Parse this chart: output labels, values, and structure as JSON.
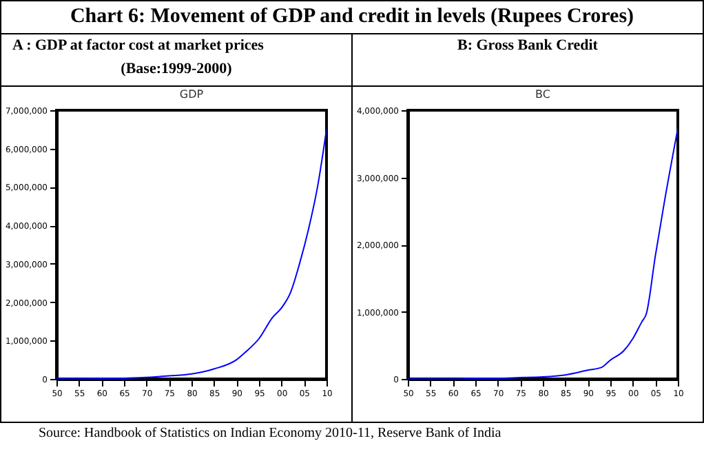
{
  "chart_data": [
    {
      "type": "line",
      "title": "A : GDP at factor cost at market prices",
      "subtitle": "(Base:1999-2000)",
      "annotations": [
        "Chart 6: Movement of GDP and credit in levels (Rupees Crores)",
        "Source: Handbook of Statistics on Indian Economy 2010-11, Reserve Bank of India"
      ],
      "x": [
        1950,
        1955,
        1960,
        1965,
        1970,
        1975,
        1980,
        1985,
        1990,
        1992,
        1995,
        1998,
        2000,
        2002,
        2004,
        2006,
        2008,
        2010
      ],
      "series": [
        {
          "name": "GDP",
          "color": "#0000ff",
          "values": [
            10000,
            10000,
            20000,
            20000,
            40000,
            80000,
            130000,
            260000,
            500000,
            700000,
            1050000,
            1600000,
            1850000,
            2250000,
            3000000,
            3900000,
            5000000,
            6500000
          ]
        }
      ],
      "xlim": [
        1950,
        2010
      ],
      "ylim": [
        0,
        7000000
      ],
      "xticks": [
        {
          "value": 1950,
          "label": "50"
        },
        {
          "value": 1955,
          "label": "55"
        },
        {
          "value": 1960,
          "label": "60"
        },
        {
          "value": 1965,
          "label": "65"
        },
        {
          "value": 1970,
          "label": "70"
        },
        {
          "value": 1975,
          "label": "75"
        },
        {
          "value": 1980,
          "label": "80"
        },
        {
          "value": 1985,
          "label": "85"
        },
        {
          "value": 1990,
          "label": "90"
        },
        {
          "value": 1995,
          "label": "95"
        },
        {
          "value": 2000,
          "label": "00"
        },
        {
          "value": 2005,
          "label": "05"
        },
        {
          "value": 2010,
          "label": "10"
        }
      ],
      "yticks": [
        0,
        {
          "value": 1000000,
          "label": "1,000,000"
        },
        {
          "value": 2000000,
          "label": "2,000,000"
        },
        {
          "value": 3000000,
          "label": "3,000,000"
        },
        {
          "value": 4000000,
          "label": "4,000,000"
        },
        {
          "value": 5000000,
          "label": "5,000,000"
        },
        {
          "value": 6000000,
          "label": "6,000,000"
        },
        {
          "value": 7000000,
          "label": "7,000,000"
        }
      ],
      "grid": false
    },
    {
      "type": "line",
      "title": "B: Gross Bank Credit",
      "x": [
        1950,
        1955,
        1960,
        1965,
        1970,
        1975,
        1980,
        1985,
        1990,
        1993,
        1995,
        1998,
        2000,
        2002,
        2003,
        2005,
        2007,
        2010
      ],
      "series": [
        {
          "name": "BC",
          "color": "#0000ff",
          "values": [
            0,
            0,
            0,
            10000,
            10000,
            20000,
            30000,
            60000,
            130000,
            170000,
            280000,
            420000,
            600000,
            850000,
            970000,
            1830000,
            2630000,
            3730000
          ]
        }
      ],
      "xlim": [
        1950,
        2010
      ],
      "ylim": [
        0,
        4000000
      ],
      "xticks": [
        {
          "value": 1950,
          "label": "50"
        },
        {
          "value": 1955,
          "label": "55"
        },
        {
          "value": 1960,
          "label": "60"
        },
        {
          "value": 1965,
          "label": "65"
        },
        {
          "value": 1970,
          "label": "70"
        },
        {
          "value": 1975,
          "label": "75"
        },
        {
          "value": 1980,
          "label": "80"
        },
        {
          "value": 1985,
          "label": "85"
        },
        {
          "value": 1990,
          "label": "90"
        },
        {
          "value": 1995,
          "label": "95"
        },
        {
          "value": 2000,
          "label": "00"
        },
        {
          "value": 2005,
          "label": "05"
        },
        {
          "value": 2010,
          "label": "10"
        }
      ],
      "yticks": [
        0,
        {
          "value": 1000000,
          "label": "1,000,000"
        },
        {
          "value": 2000000,
          "label": "2,000,000"
        },
        {
          "value": 3000000,
          "label": "3,000,000"
        },
        {
          "value": 4000000,
          "label": "4,000,000"
        }
      ],
      "grid": false
    }
  ]
}
